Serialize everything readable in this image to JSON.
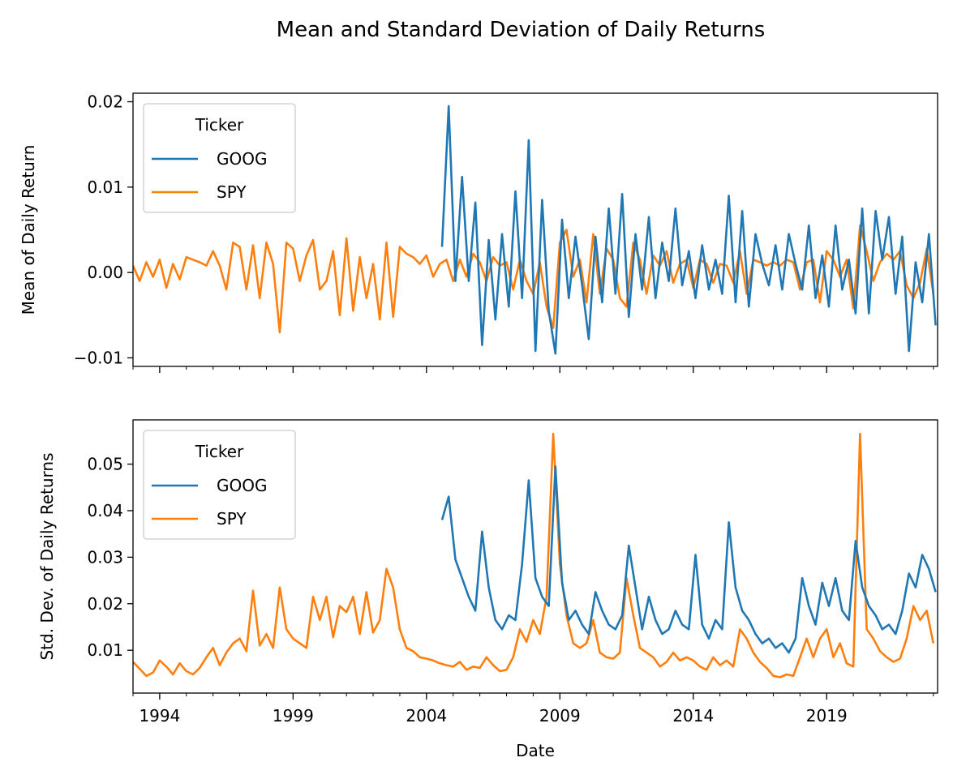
{
  "figure": {
    "title": "Mean and Standard Deviation of Daily Returns",
    "colors": {
      "GOOG": "#1f77b4",
      "SPY": "#ff7f0e",
      "axis": "#000000",
      "legend_border": "#cccccc"
    }
  },
  "chart_data": [
    {
      "type": "line",
      "title": "",
      "xlabel": "",
      "ylabel": "Mean of Daily Return",
      "x_axis_type": "date",
      "xlim": [
        "1993-01-01",
        "2023-02-28"
      ],
      "ylim": [
        -0.011,
        0.021
      ],
      "x_ticks": [
        "1994",
        "1999",
        "2004",
        "2009",
        "2014",
        "2019"
      ],
      "y_ticks": [
        -0.01,
        0.0,
        0.01,
        0.02
      ],
      "y_tick_labels": [
        "−0.01",
        "0.00",
        "0.01",
        "0.02"
      ],
      "legend": {
        "title": "Ticker",
        "placement": "top-left",
        "entries": [
          "GOOG",
          "SPY"
        ]
      },
      "grid": false,
      "series": [
        {
          "name": "SPY",
          "x": [
            "1993-01",
            "1993-04",
            "1993-07",
            "1993-10",
            "1994-01",
            "1994-04",
            "1994-07",
            "1994-10",
            "1995-01",
            "1995-04",
            "1995-07",
            "1995-10",
            "1996-01",
            "1996-04",
            "1996-07",
            "1996-10",
            "1997-01",
            "1997-04",
            "1997-07",
            "1997-10",
            "1998-01",
            "1998-04",
            "1998-07",
            "1998-10",
            "1999-01",
            "1999-04",
            "1999-07",
            "1999-10",
            "2000-01",
            "2000-04",
            "2000-07",
            "2000-10",
            "2001-01",
            "2001-04",
            "2001-07",
            "2001-10",
            "2002-01",
            "2002-04",
            "2002-07",
            "2002-10",
            "2003-01",
            "2003-04",
            "2003-07",
            "2003-10",
            "2004-01",
            "2004-04",
            "2004-07",
            "2004-10",
            "2005-01",
            "2005-04",
            "2005-07",
            "2005-10",
            "2006-01",
            "2006-04",
            "2006-07",
            "2006-10",
            "2007-01",
            "2007-04",
            "2007-07",
            "2007-10",
            "2008-01",
            "2008-04",
            "2008-07",
            "2008-10",
            "2009-01",
            "2009-04",
            "2009-07",
            "2009-10",
            "2010-01",
            "2010-04",
            "2010-07",
            "2010-10",
            "2011-01",
            "2011-04",
            "2011-07",
            "2011-10",
            "2012-01",
            "2012-04",
            "2012-07",
            "2012-10",
            "2013-01",
            "2013-04",
            "2013-07",
            "2013-10",
            "2014-01",
            "2014-04",
            "2014-07",
            "2014-10",
            "2015-01",
            "2015-04",
            "2015-07",
            "2015-10",
            "2016-01",
            "2016-04",
            "2016-07",
            "2016-10",
            "2017-01",
            "2017-04",
            "2017-07",
            "2017-10",
            "2018-01",
            "2018-04",
            "2018-07",
            "2018-10",
            "2019-01",
            "2019-04",
            "2019-07",
            "2019-10",
            "2020-01",
            "2020-04",
            "2020-07",
            "2020-10",
            "2021-01",
            "2021-04",
            "2021-07",
            "2021-10",
            "2022-01",
            "2022-04",
            "2022-07",
            "2022-10",
            "2023-01"
          ],
          "values": [
            0.0008,
            -0.001,
            0.0012,
            -0.0005,
            0.0015,
            -0.0018,
            0.001,
            -0.0008,
            0.0018,
            0.0015,
            0.0012,
            0.0008,
            0.0025,
            0.0008,
            -0.002,
            0.0035,
            0.003,
            -0.002,
            0.0032,
            -0.003,
            0.0035,
            0.001,
            -0.007,
            0.0035,
            0.0028,
            -0.001,
            0.002,
            0.0038,
            -0.002,
            -0.001,
            0.0025,
            -0.005,
            0.004,
            -0.0045,
            0.0018,
            -0.003,
            0.001,
            -0.0055,
            0.0035,
            -0.0052,
            0.003,
            0.0022,
            0.0018,
            0.001,
            0.002,
            -0.0005,
            0.001,
            0.0015,
            -0.001,
            0.0015,
            -0.0005,
            0.0022,
            0.0012,
            -0.001,
            0.0018,
            0.0008,
            0.0012,
            -0.002,
            0.0015,
            -0.001,
            -0.0025,
            0.0012,
            -0.004,
            -0.0065,
            0.0035,
            0.005,
            -0.0005,
            0.0015,
            -0.0035,
            0.0045,
            -0.0025,
            0.0028,
            0.0015,
            -0.003,
            -0.004,
            0.0035,
            0.0015,
            -0.0025,
            0.002,
            0.0008,
            0.0025,
            -0.0012,
            0.001,
            0.0015,
            -0.0018,
            0.0015,
            0.001,
            -0.0012,
            0.001,
            0.0008,
            -0.0012,
            0.0025,
            -0.0025,
            0.0015,
            0.0012,
            0.0008,
            0.0012,
            0.0008,
            0.0015,
            0.0012,
            -0.002,
            0.0012,
            0.0015,
            -0.0035,
            0.0025,
            0.0015,
            -0.0005,
            0.0015,
            -0.0042,
            0.0055,
            0.0025,
            -0.001,
            0.0012,
            0.0022,
            0.0015,
            0.0025,
            -0.0015,
            -0.003,
            -0.0012,
            0.0028,
            -0.0025
          ]
        },
        {
          "name": "GOOG",
          "x": [
            "2004-08",
            "2004-11",
            "2005-02",
            "2005-05",
            "2005-08",
            "2005-11",
            "2006-02",
            "2006-05",
            "2006-08",
            "2006-11",
            "2007-02",
            "2007-05",
            "2007-08",
            "2007-11",
            "2008-02",
            "2008-05",
            "2008-08",
            "2008-11",
            "2009-02",
            "2009-05",
            "2009-08",
            "2009-11",
            "2010-02",
            "2010-05",
            "2010-08",
            "2010-11",
            "2011-02",
            "2011-05",
            "2011-08",
            "2011-11",
            "2012-02",
            "2012-05",
            "2012-08",
            "2012-11",
            "2013-02",
            "2013-05",
            "2013-08",
            "2013-11",
            "2014-02",
            "2014-05",
            "2014-08",
            "2014-11",
            "2015-02",
            "2015-05",
            "2015-08",
            "2015-11",
            "2016-02",
            "2016-05",
            "2016-08",
            "2016-11",
            "2017-02",
            "2017-05",
            "2017-08",
            "2017-11",
            "2018-02",
            "2018-05",
            "2018-08",
            "2018-11",
            "2019-02",
            "2019-05",
            "2019-08",
            "2019-11",
            "2020-02",
            "2020-05",
            "2020-08",
            "2020-11",
            "2021-02",
            "2021-05",
            "2021-08",
            "2021-11",
            "2022-02",
            "2022-05",
            "2022-08",
            "2022-11",
            "2023-02"
          ],
          "values": [
            0.003,
            0.0195,
            -0.001,
            0.0112,
            -0.001,
            0.0082,
            -0.0085,
            0.0038,
            -0.0055,
            0.0045,
            -0.004,
            0.0095,
            -0.003,
            0.0155,
            -0.0092,
            0.0085,
            -0.0045,
            -0.0095,
            0.0062,
            -0.003,
            0.0042,
            -0.0015,
            -0.0078,
            0.0042,
            -0.0035,
            0.0075,
            -0.0025,
            0.0092,
            -0.0052,
            0.0045,
            -0.002,
            0.0065,
            -0.003,
            0.0035,
            -0.001,
            0.0075,
            -0.0015,
            0.0025,
            -0.003,
            0.0032,
            -0.002,
            0.0015,
            -0.0025,
            0.009,
            -0.0035,
            0.0072,
            -0.004,
            0.0045,
            0.001,
            -0.0015,
            0.0032,
            -0.002,
            0.0045,
            0.001,
            -0.002,
            0.0055,
            -0.003,
            0.002,
            -0.004,
            0.0055,
            -0.002,
            0.0015,
            -0.0048,
            0.0075,
            -0.0048,
            0.0072,
            0.0015,
            0.0065,
            -0.0025,
            0.0042,
            -0.0092,
            0.0012,
            -0.0035,
            0.0045,
            -0.0062
          ]
        }
      ]
    },
    {
      "type": "line",
      "title": "",
      "xlabel": "Date",
      "ylabel": "Std. Dev. of Daily Returns",
      "x_axis_type": "date",
      "xlim": [
        "1993-01-01",
        "2023-02-28"
      ],
      "ylim": [
        0.0008,
        0.0595
      ],
      "x_ticks": [
        "1994",
        "1999",
        "2004",
        "2009",
        "2014",
        "2019"
      ],
      "y_ticks": [
        0.01,
        0.02,
        0.03,
        0.04,
        0.05
      ],
      "y_tick_labels": [
        "0.01",
        "0.02",
        "0.03",
        "0.04",
        "0.05"
      ],
      "legend": {
        "title": "Ticker",
        "placement": "top-left",
        "entries": [
          "GOOG",
          "SPY"
        ]
      },
      "grid": false,
      "series": [
        {
          "name": "SPY",
          "x": [
            "1993-01",
            "1993-04",
            "1993-07",
            "1993-10",
            "1994-01",
            "1994-04",
            "1994-07",
            "1994-10",
            "1995-01",
            "1995-04",
            "1995-07",
            "1995-10",
            "1996-01",
            "1996-04",
            "1996-07",
            "1996-10",
            "1997-01",
            "1997-04",
            "1997-07",
            "1997-10",
            "1998-01",
            "1998-04",
            "1998-07",
            "1998-10",
            "1999-01",
            "1999-04",
            "1999-07",
            "1999-10",
            "2000-01",
            "2000-04",
            "2000-07",
            "2000-10",
            "2001-01",
            "2001-04",
            "2001-07",
            "2001-10",
            "2002-01",
            "2002-04",
            "2002-07",
            "2002-10",
            "2003-01",
            "2003-04",
            "2003-07",
            "2003-10",
            "2004-01",
            "2004-04",
            "2004-07",
            "2004-10",
            "2005-01",
            "2005-04",
            "2005-07",
            "2005-10",
            "2006-01",
            "2006-04",
            "2006-07",
            "2006-10",
            "2007-01",
            "2007-04",
            "2007-07",
            "2007-10",
            "2008-01",
            "2008-04",
            "2008-07",
            "2008-10",
            "2009-01",
            "2009-04",
            "2009-07",
            "2009-10",
            "2010-01",
            "2010-04",
            "2010-07",
            "2010-10",
            "2011-01",
            "2011-04",
            "2011-07",
            "2011-10",
            "2012-01",
            "2012-04",
            "2012-07",
            "2012-10",
            "2013-01",
            "2013-04",
            "2013-07",
            "2013-10",
            "2014-01",
            "2014-04",
            "2014-07",
            "2014-10",
            "2015-01",
            "2015-04",
            "2015-07",
            "2015-10",
            "2016-01",
            "2016-04",
            "2016-07",
            "2016-10",
            "2017-01",
            "2017-04",
            "2017-07",
            "2017-10",
            "2018-01",
            "2018-04",
            "2018-07",
            "2018-10",
            "2019-01",
            "2019-04",
            "2019-07",
            "2019-10",
            "2020-01",
            "2020-04",
            "2020-07",
            "2020-10",
            "2021-01",
            "2021-04",
            "2021-07",
            "2021-10",
            "2022-01",
            "2022-04",
            "2022-07",
            "2022-10",
            "2023-01"
          ],
          "values": [
            0.0075,
            0.006,
            0.0045,
            0.0052,
            0.0078,
            0.0065,
            0.0048,
            0.0072,
            0.0055,
            0.0048,
            0.0062,
            0.0085,
            0.0105,
            0.0068,
            0.0095,
            0.0115,
            0.0125,
            0.0098,
            0.0228,
            0.011,
            0.0135,
            0.0105,
            0.0235,
            0.0145,
            0.0125,
            0.0115,
            0.0105,
            0.0215,
            0.0165,
            0.0215,
            0.0128,
            0.0195,
            0.0182,
            0.0215,
            0.0135,
            0.0225,
            0.0138,
            0.0165,
            0.0275,
            0.0235,
            0.0145,
            0.0105,
            0.0098,
            0.0085,
            0.0082,
            0.0078,
            0.0072,
            0.0068,
            0.0065,
            0.0075,
            0.0058,
            0.0065,
            0.0062,
            0.0085,
            0.0068,
            0.0055,
            0.0058,
            0.0085,
            0.0145,
            0.0118,
            0.0165,
            0.0135,
            0.0215,
            0.0565,
            0.0285,
            0.0175,
            0.0115,
            0.0105,
            0.0115,
            0.0165,
            0.0095,
            0.0085,
            0.0082,
            0.0095,
            0.0255,
            0.0175,
            0.0105,
            0.0095,
            0.0085,
            0.0065,
            0.0075,
            0.0095,
            0.0078,
            0.0085,
            0.0078,
            0.0065,
            0.0058,
            0.0085,
            0.0068,
            0.0078,
            0.0065,
            0.0145,
            0.0125,
            0.0095,
            0.0075,
            0.0062,
            0.0045,
            0.0042,
            0.0048,
            0.0045,
            0.0085,
            0.0125,
            0.0085,
            0.0125,
            0.0145,
            0.0085,
            0.0115,
            0.0072,
            0.0065,
            0.0565,
            0.0145,
            0.0125,
            0.0098,
            0.0085,
            0.0075,
            0.0082,
            0.0125,
            0.0195,
            0.0165,
            0.0185,
            0.0115
          ]
        },
        {
          "name": "GOOG",
          "x": [
            "2004-08",
            "2004-11",
            "2005-02",
            "2005-05",
            "2005-08",
            "2005-11",
            "2006-02",
            "2006-05",
            "2006-08",
            "2006-11",
            "2007-02",
            "2007-05",
            "2007-08",
            "2007-11",
            "2008-02",
            "2008-05",
            "2008-08",
            "2008-11",
            "2009-02",
            "2009-05",
            "2009-08",
            "2009-11",
            "2010-02",
            "2010-05",
            "2010-08",
            "2010-11",
            "2011-02",
            "2011-05",
            "2011-08",
            "2011-11",
            "2012-02",
            "2012-05",
            "2012-08",
            "2012-11",
            "2013-02",
            "2013-05",
            "2013-08",
            "2013-11",
            "2014-02",
            "2014-05",
            "2014-08",
            "2014-11",
            "2015-02",
            "2015-05",
            "2015-08",
            "2015-11",
            "2016-02",
            "2016-05",
            "2016-08",
            "2016-11",
            "2017-02",
            "2017-05",
            "2017-08",
            "2017-11",
            "2018-02",
            "2018-05",
            "2018-08",
            "2018-11",
            "2019-02",
            "2019-05",
            "2019-08",
            "2019-11",
            "2020-02",
            "2020-05",
            "2020-08",
            "2020-11",
            "2021-02",
            "2021-05",
            "2021-08",
            "2021-11",
            "2022-02",
            "2022-05",
            "2022-08",
            "2022-11",
            "2023-02"
          ],
          "values": [
            0.038,
            0.043,
            0.0295,
            0.0255,
            0.0215,
            0.0185,
            0.0355,
            0.0235,
            0.0165,
            0.0145,
            0.0175,
            0.0165,
            0.0285,
            0.0465,
            0.0255,
            0.0215,
            0.0195,
            0.0495,
            0.0245,
            0.0165,
            0.0185,
            0.0155,
            0.0135,
            0.0225,
            0.0185,
            0.0155,
            0.0145,
            0.0175,
            0.0325,
            0.0235,
            0.0145,
            0.0215,
            0.0165,
            0.0135,
            0.0145,
            0.0185,
            0.0155,
            0.0145,
            0.0305,
            0.0155,
            0.0125,
            0.0165,
            0.0145,
            0.0375,
            0.0235,
            0.0185,
            0.0165,
            0.0135,
            0.0115,
            0.0125,
            0.0105,
            0.0115,
            0.0095,
            0.0125,
            0.0255,
            0.0195,
            0.0155,
            0.0245,
            0.0195,
            0.0255,
            0.0185,
            0.0165,
            0.0335,
            0.0235,
            0.0195,
            0.0175,
            0.0145,
            0.0155,
            0.0135,
            0.0185,
            0.0265,
            0.0235,
            0.0305,
            0.0275,
            0.0225
          ]
        }
      ]
    }
  ]
}
